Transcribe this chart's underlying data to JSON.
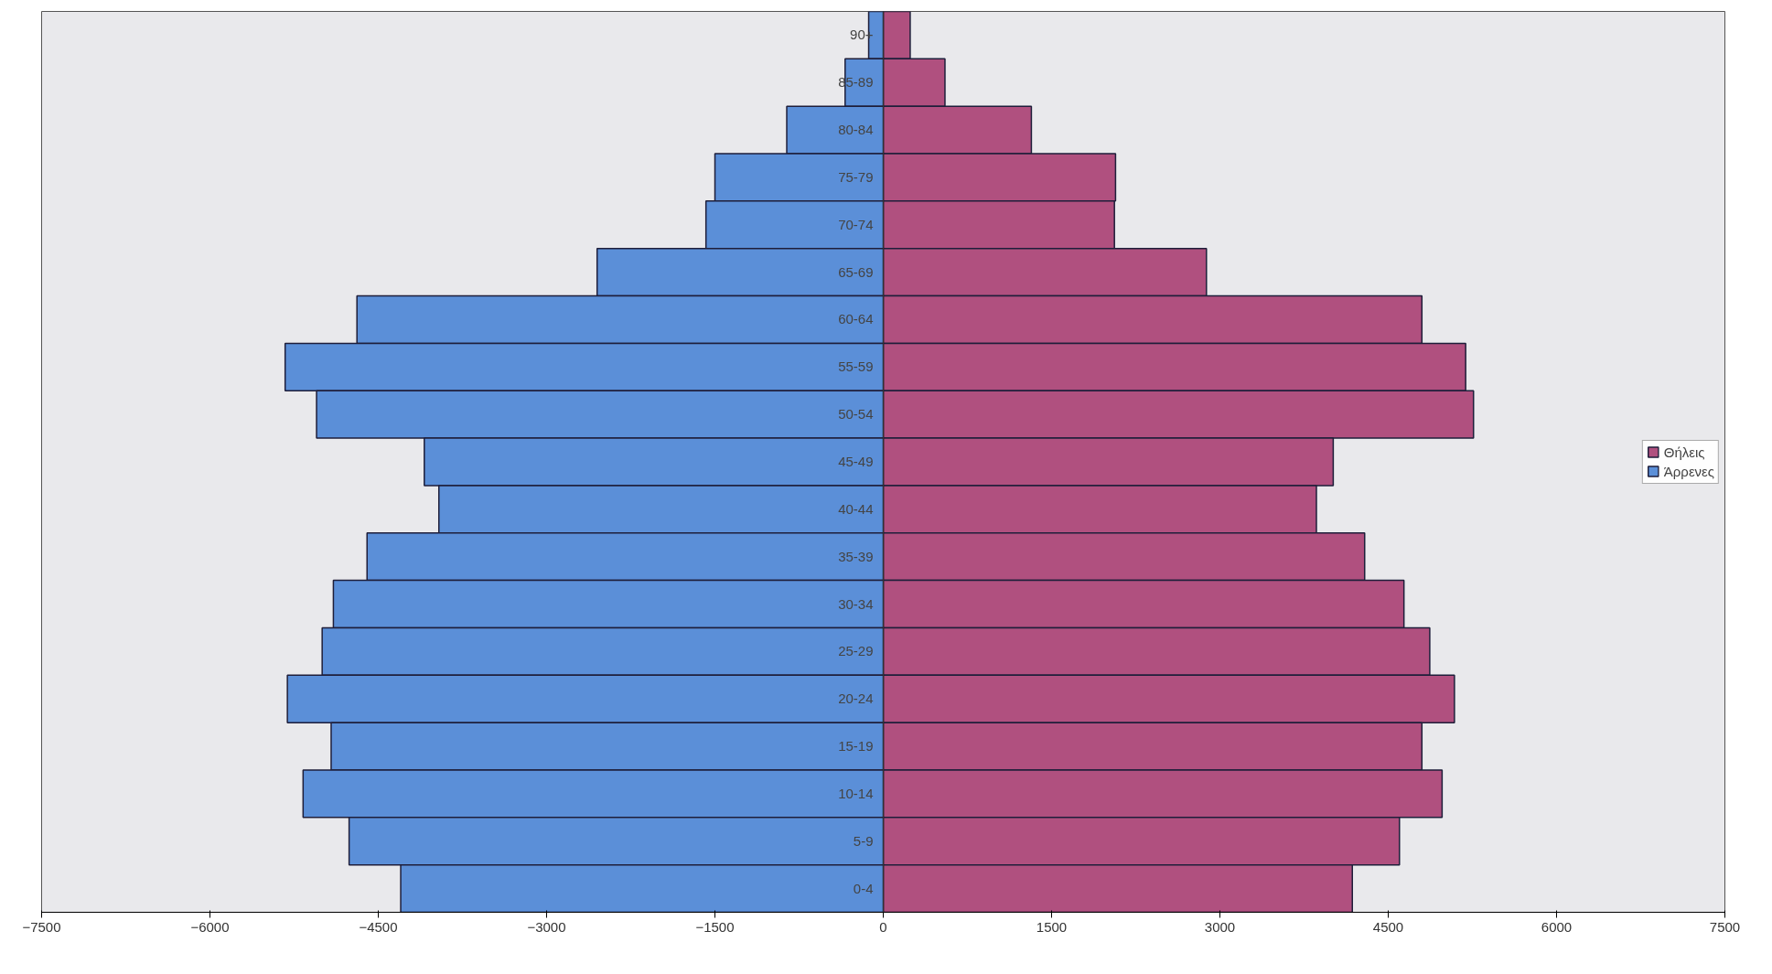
{
  "chart_data": {
    "type": "bar",
    "orientation": "horizontal",
    "categories": [
      "90+",
      "85-89",
      "80-84",
      "75-79",
      "70-74",
      "65-69",
      "60-64",
      "55-59",
      "50-54",
      "45-49",
      "40-44",
      "35-39",
      "30-34",
      "25-29",
      "20-24",
      "15-19",
      "10-14",
      "5-9",
      "0-4"
    ],
    "series": [
      {
        "name": "Θήλεις",
        "color": "#b0507f",
        "values": [
          240,
          550,
          1320,
          2070,
          2060,
          2880,
          4800,
          5190,
          5260,
          4010,
          3860,
          4290,
          4640,
          4870,
          5090,
          4800,
          4980,
          4600,
          4180
        ]
      },
      {
        "name": "Άρρενες",
        "color": "#5b8fd8",
        "values": [
          -130,
          -340,
          -860,
          -1500,
          -1580,
          -2550,
          -4690,
          -5330,
          -5050,
          -4090,
          -3960,
          -4600,
          -4900,
          -5000,
          -5310,
          -4920,
          -5170,
          -4760,
          -4300
        ]
      }
    ],
    "xlim": [
      -7500,
      7500
    ],
    "xticks": [
      -7500,
      -6000,
      -4500,
      -3000,
      -1500,
      0,
      1500,
      3000,
      4500,
      6000,
      7500
    ],
    "stacked": true,
    "grid": false,
    "legend": "right"
  }
}
